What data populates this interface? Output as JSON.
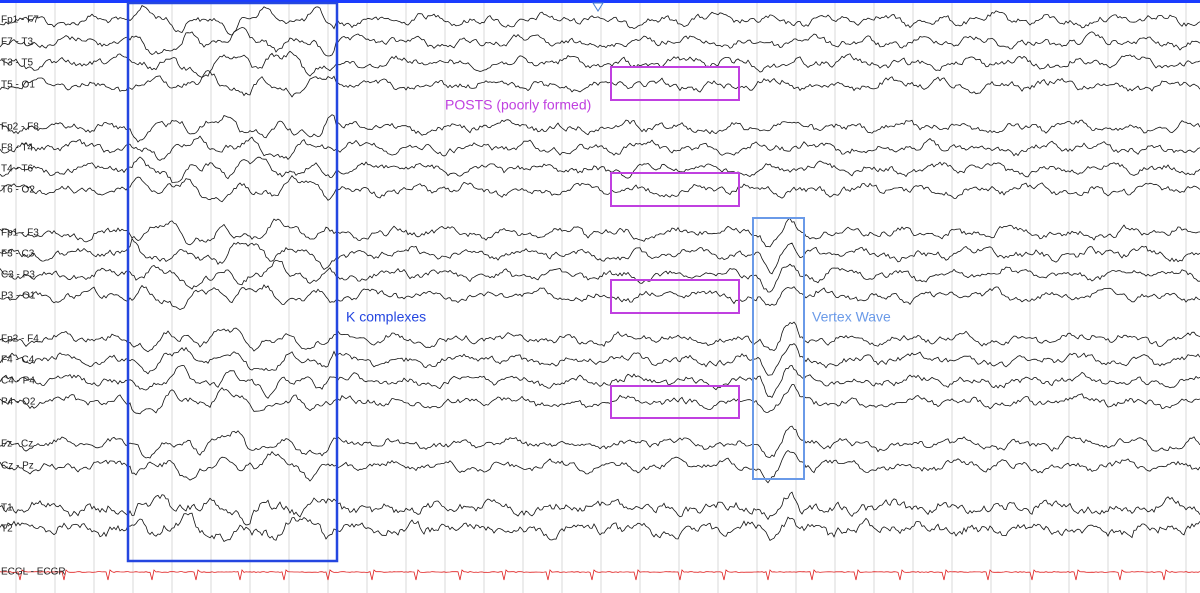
{
  "channels": [
    "Fp1 - F7",
    "F7 - T3",
    "T3 - T5",
    "T5 - O1",
    "Fp2 - F8",
    "F8 - T4",
    "T4 - T6",
    "T6 - O2",
    "Fp1 - F3",
    "F3 - C3",
    "C3 - P3",
    "P3 - O1",
    "Fp2 - F4",
    "F4 - C4",
    "C4 - P4",
    "P4 - O2",
    "Fz - Cz",
    "Cz - Pz",
    "T1",
    "T2",
    "ECGL - ECGR"
  ],
  "annotations": {
    "posts": "POSTS (poorly formed)",
    "k_complexes": "K complexes",
    "vertex_wave": "Vertex Wave"
  }
}
